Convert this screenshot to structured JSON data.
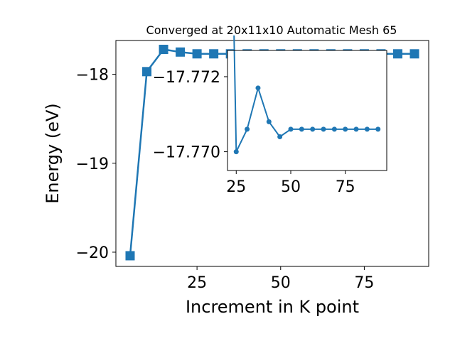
{
  "chart_data": [
    {
      "type": "line",
      "title": "Converged at 20x11x10 Automatic Mesh 65",
      "xlabel": "Increment in K point",
      "ylabel": "Energy (eV)",
      "xlim": [
        0.75,
        94.25
      ],
      "ylim": [
        -20.16,
        -17.62
      ],
      "xticks": [
        "25",
        "50",
        "75"
      ],
      "xtick_values": [
        25,
        50,
        75
      ],
      "yticks": [
        "−18",
        "−19",
        "−20"
      ],
      "ytick_values": [
        -18,
        -19,
        -20
      ],
      "grid": false,
      "marker": "square",
      "color": "#1f77b4",
      "series": [
        {
          "x": [
            5,
            10,
            15,
            20,
            25,
            30,
            35,
            40,
            45,
            50,
            55,
            60,
            65,
            70,
            75,
            80,
            85,
            90
          ],
          "y": [
            -20.04,
            -17.97,
            -17.72,
            -17.75,
            -17.77,
            -17.77,
            -17.77,
            -17.77,
            -17.77,
            -17.77,
            -17.77,
            -17.77,
            -17.77,
            -17.77,
            -17.77,
            -17.77,
            -17.77,
            -17.77
          ]
        }
      ]
    },
    {
      "type": "line",
      "title": "",
      "xlabel": "",
      "ylabel": "",
      "xlim": [
        21,
        94
      ],
      "ylim": [
        -17.7695,
        -17.7727
      ],
      "xticks": [
        "25",
        "50",
        "75"
      ],
      "xtick_values": [
        25,
        50,
        75
      ],
      "yticks": [
        "−17.772",
        "−17.770"
      ],
      "ytick_values": [
        -17.772,
        -17.77
      ],
      "grid": false,
      "marker": "circle",
      "color": "#1f77b4",
      "series": [
        {
          "x": [
            25,
            30,
            35,
            40,
            45,
            50,
            55,
            60,
            65,
            70,
            75,
            80,
            85,
            90
          ],
          "y": [
            -17.77,
            -17.7706,
            -17.7717,
            -17.7708,
            -17.7704,
            -17.7706,
            -17.7706,
            -17.7706,
            -17.7706,
            -17.7706,
            -17.7706,
            -17.7706,
            -17.7706,
            -17.7706
          ],
          "from_above": {
            "x": 24,
            "y": -17.7731
          }
        }
      ]
    }
  ]
}
